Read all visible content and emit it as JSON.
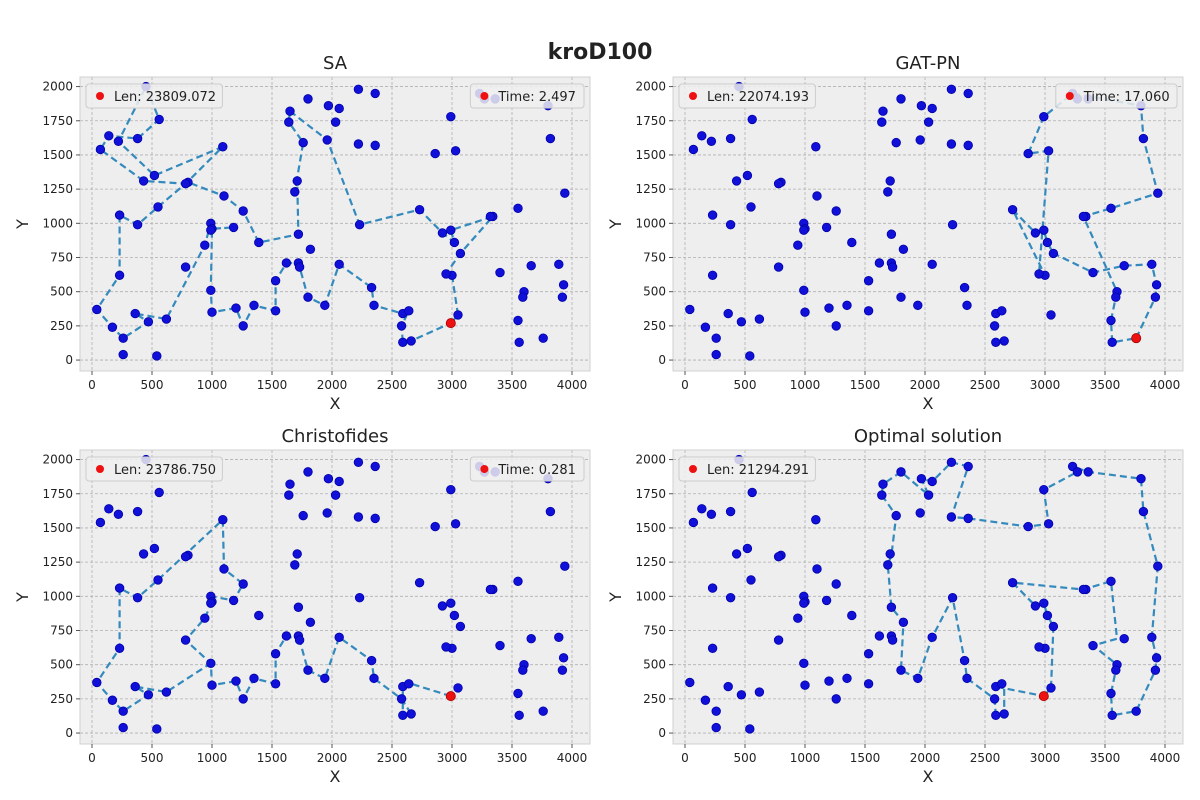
{
  "figure": {
    "suptitle": "kroD100"
  },
  "chart_data": [
    {
      "type": "scatter",
      "title": "SA",
      "xlabel": "X",
      "ylabel": "Y",
      "xlim": [
        -100,
        4150
      ],
      "ylim": [
        -80,
        2070
      ],
      "xticks": [
        0,
        500,
        1000,
        1500,
        2000,
        2500,
        3000,
        3500,
        4000
      ],
      "yticks": [
        0,
        250,
        500,
        750,
        1000,
        1250,
        1500,
        1750,
        2000
      ],
      "grid": true,
      "legend_left": "Len: 23809.072",
      "legend_right": "Time: 2.497",
      "start": [
        2990,
        270
      ],
      "route": [
        [
          2990,
          270
        ],
        [
          3050,
          330
        ],
        [
          3000,
          620
        ],
        [
          2950,
          630
        ],
        [
          3070,
          780
        ],
        [
          3340,
          1050
        ],
        [
          2990,
          950
        ],
        [
          3020,
          860
        ],
        [
          2920,
          930
        ],
        [
          2730,
          1100
        ],
        [
          2230,
          990
        ],
        [
          1960,
          1610
        ],
        [
          1650,
          1820
        ],
        [
          1640,
          1740
        ],
        [
          1760,
          1590
        ],
        [
          1690,
          1230
        ],
        [
          1710,
          1310
        ],
        [
          1720,
          920
        ],
        [
          1390,
          860
        ],
        [
          1260,
          1090
        ],
        [
          1100,
          1200
        ],
        [
          800,
          1300
        ],
        [
          780,
          1290
        ],
        [
          430,
          1310
        ],
        [
          70,
          1540
        ],
        [
          140,
          1640
        ],
        [
          380,
          1620
        ],
        [
          560,
          1760
        ],
        [
          450,
          2000
        ],
        [
          220,
          1600
        ],
        [
          520,
          1350
        ],
        [
          1090,
          1560
        ],
        [
          780,
          1290
        ],
        [
          550,
          1120
        ],
        [
          380,
          990
        ],
        [
          230,
          1060
        ],
        [
          230,
          620
        ],
        [
          40,
          370
        ],
        [
          170,
          240
        ],
        [
          260,
          160
        ],
        [
          470,
          280
        ],
        [
          360,
          340
        ],
        [
          620,
          300
        ],
        [
          940,
          840
        ],
        [
          990,
          1000
        ],
        [
          1000,
          960
        ],
        [
          1180,
          970
        ],
        [
          1000,
          960
        ],
        [
          990,
          510
        ],
        [
          1000,
          350
        ],
        [
          1200,
          380
        ],
        [
          1260,
          250
        ],
        [
          1350,
          400
        ],
        [
          1530,
          360
        ],
        [
          1530,
          580
        ],
        [
          1620,
          710
        ],
        [
          1720,
          710
        ],
        [
          1730,
          680
        ],
        [
          1800,
          460
        ],
        [
          1940,
          400
        ],
        [
          2060,
          700
        ],
        [
          2330,
          530
        ],
        [
          2350,
          400
        ],
        [
          2590,
          340
        ],
        [
          2640,
          360
        ],
        [
          2580,
          250
        ],
        [
          2590,
          130
        ],
        [
          2660,
          140
        ],
        [
          2990,
          270
        ]
      ]
    },
    {
      "type": "scatter",
      "title": "GAT-PN",
      "xlabel": "X",
      "ylabel": "Y",
      "xlim": [
        -100,
        4150
      ],
      "ylim": [
        -80,
        2070
      ],
      "xticks": [
        0,
        500,
        1000,
        1500,
        2000,
        2500,
        3000,
        3500,
        4000
      ],
      "yticks": [
        0,
        250,
        500,
        750,
        1000,
        1250,
        1500,
        1750,
        2000
      ],
      "grid": true,
      "legend_left": "Len: 22074.193",
      "legend_right": "Time: 17.060",
      "start": [
        3760,
        160
      ],
      "route": [
        [
          3760,
          160
        ],
        [
          3920,
          460
        ],
        [
          3930,
          550
        ],
        [
          3890,
          700
        ],
        [
          3660,
          690
        ],
        [
          3400,
          640
        ],
        [
          3070,
          780
        ],
        [
          3020,
          860
        ],
        [
          2990,
          950
        ],
        [
          2920,
          930
        ],
        [
          2730,
          1100
        ],
        [
          3000,
          620
        ],
        [
          2950,
          630
        ],
        [
          3030,
          1530
        ],
        [
          2860,
          1510
        ],
        [
          2990,
          1780
        ],
        [
          3230,
          1950
        ],
        [
          3800,
          1860
        ],
        [
          3820,
          1620
        ],
        [
          3940,
          1220
        ],
        [
          3550,
          1110
        ],
        [
          3320,
          1050
        ],
        [
          3600,
          500
        ],
        [
          3590,
          460
        ],
        [
          3550,
          290
        ],
        [
          3560,
          130
        ],
        [
          3760,
          160
        ]
      ]
    },
    {
      "type": "scatter",
      "title": "Christofides",
      "xlabel": "X",
      "ylabel": "Y",
      "xlim": [
        -100,
        4150
      ],
      "ylim": [
        -80,
        2070
      ],
      "xticks": [
        0,
        500,
        1000,
        1500,
        2000,
        2500,
        3000,
        3500,
        4000
      ],
      "yticks": [
        0,
        250,
        500,
        750,
        1000,
        1250,
        1500,
        1750,
        2000
      ],
      "grid": true,
      "legend_left": "Len: 23786.750",
      "legend_right": "Time: 0.281",
      "start": [
        2990,
        270
      ],
      "route": [
        [
          2990,
          270
        ],
        [
          2660,
          360
        ],
        [
          2590,
          340
        ],
        [
          2590,
          130
        ],
        [
          2660,
          140
        ],
        [
          2580,
          250
        ],
        [
          2350,
          400
        ],
        [
          2330,
          530
        ],
        [
          2060,
          700
        ],
        [
          1940,
          400
        ],
        [
          1800,
          460
        ],
        [
          1720,
          710
        ],
        [
          1730,
          680
        ],
        [
          1620,
          710
        ],
        [
          1530,
          580
        ],
        [
          1530,
          360
        ],
        [
          1350,
          400
        ],
        [
          1260,
          250
        ],
        [
          1200,
          380
        ],
        [
          1000,
          350
        ],
        [
          990,
          510
        ],
        [
          780,
          680
        ],
        [
          940,
          840
        ],
        [
          1000,
          960
        ],
        [
          990,
          1000
        ],
        [
          1180,
          970
        ],
        [
          1260,
          1090
        ],
        [
          1100,
          1200
        ],
        [
          1090,
          1560
        ],
        [
          550,
          1120
        ],
        [
          380,
          990
        ],
        [
          230,
          1060
        ],
        [
          230,
          620
        ],
        [
          40,
          370
        ],
        [
          170,
          240
        ],
        [
          260,
          160
        ],
        [
          470,
          280
        ],
        [
          360,
          340
        ],
        [
          620,
          300
        ],
        [
          990,
          510
        ]
      ]
    },
    {
      "type": "scatter",
      "title": "Optimal solution",
      "xlabel": "X",
      "ylabel": "Y",
      "xlim": [
        -100,
        4150
      ],
      "ylim": [
        -80,
        2070
      ],
      "xticks": [
        0,
        500,
        1000,
        1500,
        2000,
        2500,
        3000,
        3500,
        4000
      ],
      "yticks": [
        0,
        250,
        500,
        750,
        1000,
        1250,
        1500,
        1750,
        2000
      ],
      "grid": true,
      "legend_left": "Len: 21294.291",
      "legend_right": "",
      "start": [
        2990,
        270
      ],
      "route": [
        [
          2990,
          270
        ],
        [
          3050,
          330
        ],
        [
          3070,
          780
        ],
        [
          3020,
          860
        ],
        [
          2990,
          950
        ],
        [
          2920,
          930
        ],
        [
          2730,
          1100
        ],
        [
          3320,
          1050
        ],
        [
          3550,
          1110
        ],
        [
          3600,
          690
        ],
        [
          3400,
          640
        ],
        [
          3600,
          500
        ],
        [
          3590,
          460
        ],
        [
          3550,
          290
        ],
        [
          3560,
          130
        ],
        [
          3760,
          160
        ],
        [
          3920,
          460
        ],
        [
          3930,
          550
        ],
        [
          3890,
          700
        ],
        [
          3940,
          1220
        ],
        [
          3820,
          1620
        ],
        [
          3800,
          1860
        ],
        [
          3360,
          1910
        ],
        [
          3230,
          1950
        ],
        [
          3270,
          1910
        ],
        [
          2990,
          1780
        ],
        [
          3030,
          1530
        ],
        [
          2860,
          1510
        ],
        [
          2360,
          1570
        ],
        [
          2220,
          1580
        ],
        [
          2360,
          1950
        ],
        [
          2220,
          1980
        ],
        [
          2060,
          1840
        ],
        [
          1970,
          1860
        ],
        [
          2030,
          1740
        ],
        [
          1800,
          1910
        ],
        [
          1650,
          1820
        ],
        [
          1640,
          1740
        ],
        [
          1760,
          1590
        ],
        [
          1720,
          1300
        ],
        [
          1690,
          1230
        ],
        [
          1720,
          920
        ],
        [
          1820,
          810
        ],
        [
          1800,
          460
        ],
        [
          1940,
          400
        ],
        [
          2060,
          700
        ],
        [
          2230,
          990
        ],
        [
          2330,
          530
        ],
        [
          2350,
          400
        ],
        [
          2580,
          250
        ],
        [
          2590,
          130
        ],
        [
          2660,
          140
        ],
        [
          2660,
          360
        ],
        [
          2590,
          340
        ],
        [
          2990,
          270
        ]
      ]
    }
  ],
  "cities": [
    [
      3050,
      330
    ],
    [
      3000,
      620
    ],
    [
      2950,
      630
    ],
    [
      3070,
      780
    ],
    [
      3340,
      1050
    ],
    [
      2990,
      950
    ],
    [
      3020,
      860
    ],
    [
      2920,
      930
    ],
    [
      2730,
      1100
    ],
    [
      2230,
      990
    ],
    [
      1960,
      1610
    ],
    [
      1650,
      1820
    ],
    [
      1640,
      1740
    ],
    [
      1760,
      1590
    ],
    [
      1690,
      1230
    ],
    [
      1710,
      1310
    ],
    [
      1720,
      920
    ],
    [
      1390,
      860
    ],
    [
      1260,
      1090
    ],
    [
      1100,
      1200
    ],
    [
      800,
      1300
    ],
    [
      780,
      1290
    ],
    [
      430,
      1310
    ],
    [
      70,
      1540
    ],
    [
      140,
      1640
    ],
    [
      380,
      1620
    ],
    [
      560,
      1760
    ],
    [
      450,
      2000
    ],
    [
      220,
      1600
    ],
    [
      520,
      1350
    ],
    [
      1090,
      1560
    ],
    [
      550,
      1120
    ],
    [
      380,
      990
    ],
    [
      230,
      1060
    ],
    [
      230,
      620
    ],
    [
      40,
      370
    ],
    [
      170,
      240
    ],
    [
      260,
      160
    ],
    [
      470,
      280
    ],
    [
      360,
      340
    ],
    [
      620,
      300
    ],
    [
      940,
      840
    ],
    [
      990,
      1000
    ],
    [
      1000,
      960
    ],
    [
      1180,
      970
    ],
    [
      990,
      510
    ],
    [
      1000,
      350
    ],
    [
      1200,
      380
    ],
    [
      1260,
      250
    ],
    [
      1350,
      400
    ],
    [
      1530,
      360
    ],
    [
      1530,
      580
    ],
    [
      1620,
      710
    ],
    [
      1720,
      710
    ],
    [
      1730,
      680
    ],
    [
      1800,
      460
    ],
    [
      1940,
      400
    ],
    [
      2060,
      700
    ],
    [
      2330,
      530
    ],
    [
      2350,
      400
    ],
    [
      2590,
      340
    ],
    [
      2640,
      360
    ],
    [
      2580,
      250
    ],
    [
      2590,
      130
    ],
    [
      2660,
      140
    ],
    [
      780,
      680
    ],
    [
      1820,
      810
    ],
    [
      2030,
      1740
    ],
    [
      1970,
      1860
    ],
    [
      2060,
      1840
    ],
    [
      1800,
      1910
    ],
    [
      2220,
      1980
    ],
    [
      2360,
      1950
    ],
    [
      2220,
      1580
    ],
    [
      2360,
      1570
    ],
    [
      2860,
      1510
    ],
    [
      3030,
      1530
    ],
    [
      2990,
      1780
    ],
    [
      3230,
      1950
    ],
    [
      3270,
      1910
    ],
    [
      3360,
      1910
    ],
    [
      3800,
      1860
    ],
    [
      3820,
      1620
    ],
    [
      3940,
      1220
    ],
    [
      3550,
      1110
    ],
    [
      3320,
      1050
    ],
    [
      3660,
      690
    ],
    [
      3400,
      640
    ],
    [
      3600,
      500
    ],
    [
      3590,
      460
    ],
    [
      3550,
      290
    ],
    [
      3560,
      130
    ],
    [
      3760,
      160
    ],
    [
      3920,
      460
    ],
    [
      3930,
      550
    ],
    [
      3890,
      700
    ],
    [
      260,
      40
    ],
    [
      540,
      30
    ],
    [
      990,
      950
    ]
  ],
  "colors": {
    "route": "#348abd",
    "city_fill": "#1010d8",
    "city_edge": "#0000aa",
    "start": "#ee1111",
    "axes_bg": "#eeeeee",
    "grid": "#b0b0b0"
  }
}
